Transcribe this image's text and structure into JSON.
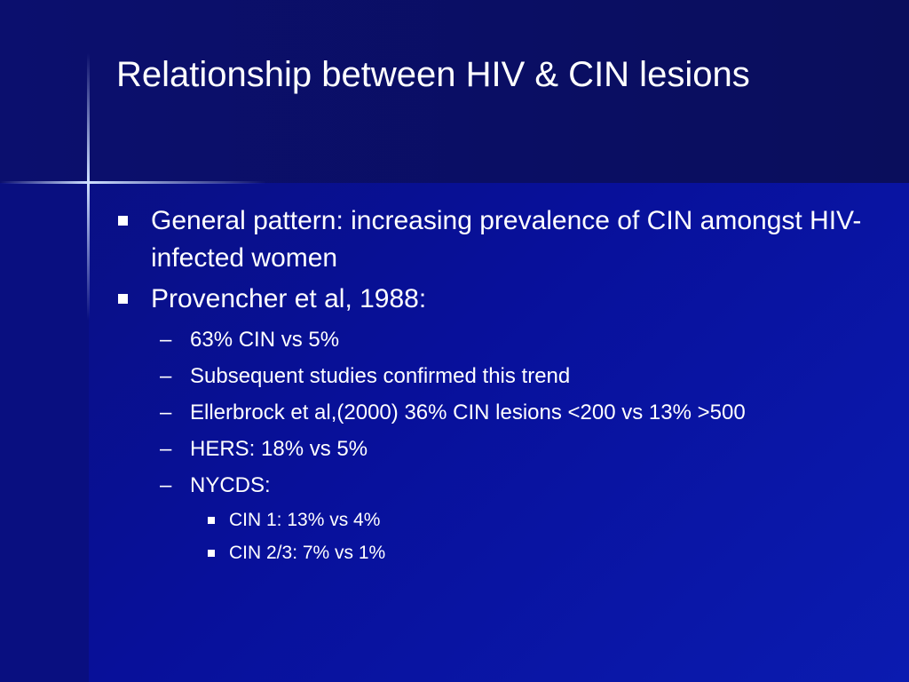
{
  "slide": {
    "title": "Relationship between HIV & CIN lesions",
    "items": [
      {
        "text": "General pattern: increasing prevalence of CIN amongst HIV-infected women",
        "level": 1
      },
      {
        "text": "Provencher et al, 1988:",
        "level": 1
      },
      {
        "text": "63% CIN vs 5%",
        "level": 2
      },
      {
        "text": "Subsequent studies confirmed this trend",
        "level": 2
      },
      {
        "text": "Ellerbrock et al,(2000) 36% CIN lesions <200 vs 13% >500",
        "level": 2
      },
      {
        "text": "HERS: 18% vs 5%",
        "level": 2
      },
      {
        "text": "NYCDS:",
        "level": 2
      },
      {
        "text": "CIN 1: 13% vs 4%",
        "level": 3
      },
      {
        "text": "CIN 2/3: 7% vs 1%",
        "level": 3
      }
    ]
  }
}
